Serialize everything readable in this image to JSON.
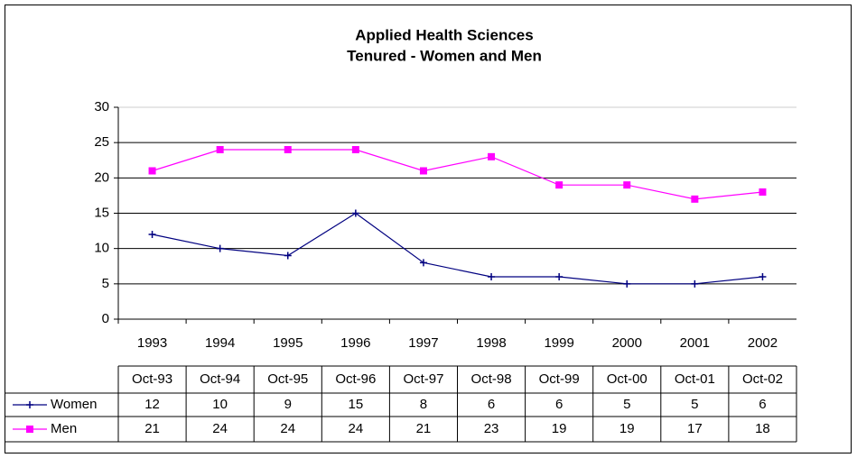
{
  "chart_data": {
    "type": "line",
    "title": [
      "Applied Health Sciences",
      "Tenured - Women and Men"
    ],
    "categories": [
      "1993",
      "1994",
      "1995",
      "1996",
      "1997",
      "1998",
      "1999",
      "2000",
      "2001",
      "2002"
    ],
    "table_header": [
      "Oct-93",
      "Oct-94",
      "Oct-95",
      "Oct-96",
      "Oct-97",
      "Oct-98",
      "Oct-99",
      "Oct-00",
      "Oct-01",
      "Oct-02"
    ],
    "series": [
      {
        "name": "Women",
        "color": "#000080",
        "marker": "plus",
        "values": [
          12,
          10,
          9,
          15,
          8,
          6,
          6,
          5,
          5,
          6
        ]
      },
      {
        "name": "Men",
        "color": "#ff00ff",
        "marker": "square",
        "values": [
          21,
          24,
          24,
          24,
          21,
          23,
          19,
          19,
          17,
          18
        ]
      }
    ],
    "ylim": [
      0,
      30
    ],
    "yticks": [
      0,
      5,
      10,
      15,
      20,
      25,
      30
    ],
    "grid": true
  }
}
